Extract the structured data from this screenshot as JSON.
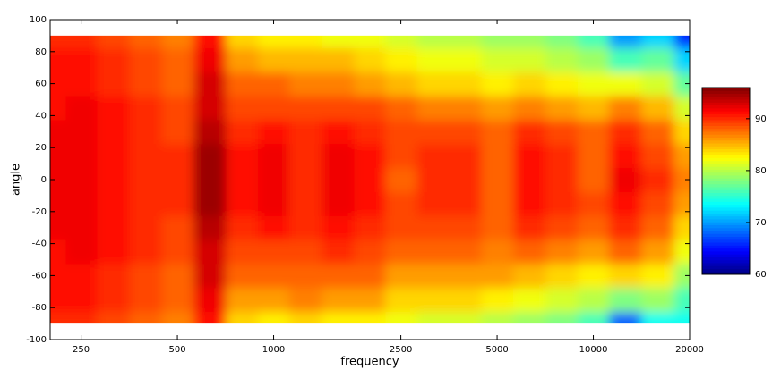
{
  "chart_data": {
    "type": "heatmap",
    "xlabel": "frequency",
    "ylabel": "angle",
    "xscale": "log",
    "colormap": "jet",
    "xlim": [
      200,
      20000
    ],
    "ylim": [
      -100,
      100
    ],
    "xticks": [
      250,
      500,
      1000,
      2500,
      5000,
      10000,
      20000
    ],
    "yticks": [
      -100,
      -80,
      -60,
      -40,
      -20,
      0,
      20,
      40,
      60,
      80,
      100
    ],
    "clim": [
      60,
      96
    ],
    "cticks": [
      60,
      70,
      80,
      90
    ],
    "x": [
      200,
      250,
      315,
      400,
      500,
      630,
      800,
      1000,
      1250,
      1600,
      2000,
      2500,
      3150,
      4000,
      5000,
      6300,
      8000,
      10000,
      12500,
      16000,
      20000
    ],
    "y": [
      -90,
      -75,
      -60,
      -45,
      -30,
      -15,
      0,
      15,
      30,
      45,
      60,
      75,
      90
    ],
    "values": [
      [
        90,
        91,
        91,
        91,
        92,
        92,
        92,
        92,
        92,
        91,
        91,
        91,
        90
      ],
      [
        90,
        91,
        91,
        92,
        92,
        92,
        92,
        92,
        92,
        92,
        91,
        91,
        90
      ],
      [
        89,
        90,
        90,
        91,
        91,
        91,
        91,
        91,
        91,
        91,
        90,
        90,
        89
      ],
      [
        88,
        89,
        89,
        90,
        90,
        90,
        90,
        90,
        90,
        90,
        89,
        89,
        88
      ],
      [
        87,
        88,
        88,
        89,
        89,
        90,
        90,
        90,
        89,
        89,
        88,
        88,
        87
      ],
      [
        91,
        92,
        93,
        93,
        94,
        95,
        95,
        95,
        94,
        93,
        93,
        92,
        91
      ],
      [
        84,
        86,
        88,
        89,
        90,
        91,
        91,
        91,
        90,
        89,
        88,
        86,
        84
      ],
      [
        83,
        86,
        88,
        89,
        91,
        92,
        92,
        92,
        91,
        89,
        88,
        85,
        83
      ],
      [
        84,
        87,
        88,
        89,
        90,
        90,
        90,
        90,
        90,
        89,
        87,
        85,
        83
      ],
      [
        83,
        86,
        88,
        90,
        91,
        92,
        92,
        92,
        91,
        89,
        87,
        85,
        82
      ],
      [
        83,
        86,
        88,
        89,
        90,
        91,
        91,
        91,
        90,
        89,
        86,
        84,
        82
      ],
      [
        82,
        84,
        86,
        88,
        89,
        89,
        88,
        89,
        89,
        88,
        85,
        83,
        81
      ],
      [
        81,
        84,
        86,
        88,
        89,
        90,
        90,
        90,
        89,
        87,
        84,
        82,
        80
      ],
      [
        81,
        84,
        86,
        88,
        89,
        90,
        90,
        90,
        89,
        87,
        84,
        82,
        80
      ],
      [
        80,
        83,
        86,
        87,
        88,
        88,
        88,
        88,
        88,
        86,
        83,
        81,
        79
      ],
      [
        79,
        82,
        85,
        88,
        90,
        91,
        91,
        91,
        90,
        87,
        84,
        81,
        79
      ],
      [
        78,
        81,
        84,
        87,
        89,
        90,
        90,
        90,
        89,
        86,
        83,
        80,
        78
      ],
      [
        76,
        80,
        83,
        86,
        88,
        89,
        88,
        88,
        88,
        85,
        82,
        79,
        76
      ],
      [
        68,
        78,
        84,
        88,
        90,
        91,
        92,
        91,
        90,
        87,
        82,
        76,
        70
      ],
      [
        74,
        79,
        83,
        86,
        88,
        89,
        90,
        89,
        88,
        85,
        81,
        77,
        72
      ],
      [
        74,
        76,
        79,
        82,
        84,
        86,
        87,
        86,
        84,
        81,
        77,
        72,
        66
      ]
    ]
  }
}
